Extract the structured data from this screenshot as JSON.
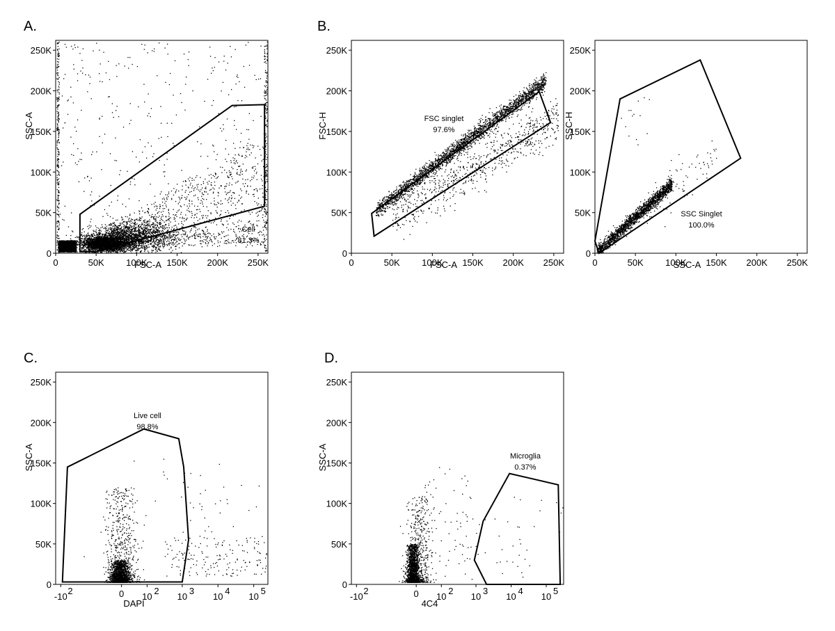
{
  "figure": {
    "background": "#ffffff",
    "ink": "#000000"
  },
  "chart_data": [
    {
      "panel": "A.",
      "type": "scatter",
      "xlabel": "FSC-A",
      "ylabel": "SSC-A",
      "x_scale": "linear",
      "xlim": [
        0,
        262144
      ],
      "ylim": [
        0,
        262144
      ],
      "xticks": [
        {
          "v": 0,
          "label": "0"
        },
        {
          "v": 50000,
          "label": "50K"
        },
        {
          "v": 100000,
          "label": "100K"
        },
        {
          "v": 150000,
          "label": "150K"
        },
        {
          "v": 200000,
          "label": "200K"
        },
        {
          "v": 250000,
          "label": "250K"
        }
      ],
      "yticks": [
        {
          "v": 0,
          "label": "0"
        },
        {
          "v": 50000,
          "label": "50K"
        },
        {
          "v": 100000,
          "label": "100K"
        },
        {
          "v": 150000,
          "label": "150K"
        },
        {
          "v": 200000,
          "label": "200K"
        },
        {
          "v": 250000,
          "label": "250K"
        }
      ],
      "gate": {
        "name": "Cell",
        "percent": "81.3%",
        "vertices": [
          [
            30000,
            48000
          ],
          [
            30000,
            2000
          ],
          [
            50000,
            2000
          ],
          [
            258000,
            58000
          ],
          [
            258000,
            183000
          ],
          [
            218000,
            182000
          ]
        ]
      },
      "clusters": [
        {
          "n": 1800,
          "x": [
            3000,
            25000
          ],
          "y": [
            2000,
            16000
          ],
          "shape": "box"
        },
        {
          "n": 2600,
          "cx": 60000,
          "cy": 12000,
          "sx": 14000,
          "sy": 5000
        },
        {
          "n": 1600,
          "cx": 95000,
          "cy": 20000,
          "sx": 25000,
          "sy": 9000
        },
        {
          "n": 1300,
          "x": [
            40000,
            258000
          ],
          "y": [
            8000,
            150000
          ],
          "shape": "wedge"
        },
        {
          "n": 380,
          "x": [
            2000,
            258000
          ],
          "y": [
            10000,
            262000
          ],
          "shape": "box"
        },
        {
          "n": 260,
          "x": [
            1000,
            4000
          ],
          "y": [
            0,
            262000
          ],
          "shape": "box"
        },
        {
          "n": 220,
          "x": [
            257000,
            261000
          ],
          "y": [
            0,
            262000
          ],
          "shape": "box"
        }
      ]
    },
    {
      "panel": "B.",
      "type": "scatter",
      "xlabel": "FSC-A",
      "ylabel": "FSC-H",
      "x_scale": "linear",
      "xlim": [
        0,
        262144
      ],
      "ylim": [
        0,
        262144
      ],
      "xticks": [
        {
          "v": 0,
          "label": "0"
        },
        {
          "v": 50000,
          "label": "50K"
        },
        {
          "v": 100000,
          "label": "100K"
        },
        {
          "v": 150000,
          "label": "150K"
        },
        {
          "v": 200000,
          "label": "200K"
        },
        {
          "v": 250000,
          "label": "250K"
        }
      ],
      "yticks": [
        {
          "v": 0,
          "label": "0"
        },
        {
          "v": 50000,
          "label": "50K"
        },
        {
          "v": 100000,
          "label": "100K"
        },
        {
          "v": 150000,
          "label": "150K"
        },
        {
          "v": 200000,
          "label": "200K"
        },
        {
          "v": 250000,
          "label": "250K"
        }
      ],
      "gate": {
        "name": "FSC singlet",
        "percent": "97.6%",
        "vertices": [
          [
            25000,
            49000
          ],
          [
            232000,
            199000
          ],
          [
            246000,
            161000
          ],
          [
            28000,
            21000
          ]
        ]
      },
      "clusters": [
        {
          "n": 2600,
          "band": true,
          "x": [
            30000,
            240000
          ],
          "y0": 30000,
          "slope": 0.76,
          "spread": 5000
        },
        {
          "n": 700,
          "band": true,
          "x": [
            50000,
            255000
          ],
          "y0": 15000,
          "slope": 0.6,
          "spread": 14000
        }
      ]
    },
    {
      "panel": "",
      "type": "scatter",
      "xlabel": "SSC-A",
      "ylabel": "SSC-H",
      "x_scale": "linear",
      "xlim": [
        0,
        262144
      ],
      "ylim": [
        0,
        262144
      ],
      "xticks": [
        {
          "v": 0,
          "label": "0"
        },
        {
          "v": 50000,
          "label": "50K"
        },
        {
          "v": 100000,
          "label": "100K"
        },
        {
          "v": 150000,
          "label": "150K"
        },
        {
          "v": 200000,
          "label": "200K"
        },
        {
          "v": 250000,
          "label": "250K"
        }
      ],
      "yticks": [
        {
          "v": 0,
          "label": "0"
        },
        {
          "v": 50000,
          "label": "50K"
        },
        {
          "v": 100000,
          "label": "100K"
        },
        {
          "v": 150000,
          "label": "150K"
        },
        {
          "v": 200000,
          "label": "200K"
        },
        {
          "v": 250000,
          "label": "250K"
        }
      ],
      "gate": {
        "name": "SSC Singlet",
        "percent": "100.0%",
        "vertices": [
          [
            31000,
            190000
          ],
          [
            130000,
            238000
          ],
          [
            180000,
            117000
          ],
          [
            5000,
            0
          ],
          [
            0,
            15000
          ]
        ]
      },
      "clusters": [
        {
          "n": 1900,
          "band": true,
          "x": [
            2000,
            95000
          ],
          "y0": 0,
          "slope": 0.9,
          "spread": 4000
        },
        {
          "n": 90,
          "band": true,
          "x": [
            50000,
            150000
          ],
          "y0": 10000,
          "slope": 0.75,
          "spread": 14000
        },
        {
          "n": 14,
          "x": [
            30000,
            70000
          ],
          "y": [
            130000,
            200000
          ],
          "shape": "box"
        }
      ]
    },
    {
      "panel": "C.",
      "type": "scatter",
      "xlabel": "DAPI",
      "ylabel": "SSC-A",
      "x_scale": "biexponential",
      "xlim": [
        -1000,
        200000
      ],
      "ylim": [
        0,
        262144
      ],
      "xticks": [
        {
          "v": -1000,
          "label": "-10",
          "exp": "2"
        },
        {
          "v": 0,
          "label": "0"
        },
        {
          "v": 100,
          "label": "10",
          "exp": "2"
        },
        {
          "v": 1000,
          "label": "10",
          "exp": "3"
        },
        {
          "v": 10000,
          "label": "10",
          "exp": "4"
        },
        {
          "v": 100000,
          "label": "10",
          "exp": "5"
        }
      ],
      "yticks": [
        {
          "v": 0,
          "label": "0"
        },
        {
          "v": 50000,
          "label": "50K"
        },
        {
          "v": 100000,
          "label": "100K"
        },
        {
          "v": 150000,
          "label": "150K"
        },
        {
          "v": 200000,
          "label": "200K"
        },
        {
          "v": 250000,
          "label": "250K"
        }
      ],
      "gate": {
        "name": "Live cell",
        "percent": "98.8%",
        "vertices": [
          [
            -900,
            3000
          ],
          [
            -650,
            145000
          ],
          [
            80,
            192000
          ],
          [
            800,
            180000
          ],
          [
            1100,
            145000
          ],
          [
            1500,
            55000
          ],
          [
            1000,
            3000
          ]
        ]
      },
      "clusters": [
        {
          "n": 1600,
          "tcx": -0.05,
          "ty": [
            3000,
            30000
          ],
          "tsx": 0.12
        },
        {
          "n": 700,
          "tcx": 0.0,
          "ty": [
            3000,
            120000
          ],
          "tsx": 0.22
        },
        {
          "n": 200,
          "tx": [
            1.2,
            4.5
          ],
          "ty": [
            10000,
            60000
          ]
        },
        {
          "n": 40,
          "tx": [
            0.3,
            4.0
          ],
          "ty": [
            50000,
            160000
          ]
        }
      ]
    },
    {
      "panel": "D.",
      "type": "scatter",
      "xlabel": "4C4",
      "ylabel": "SSC-A",
      "x_scale": "biexponential",
      "xlim": [
        -1000,
        250000
      ],
      "ylim": [
        0,
        262144
      ],
      "xticks": [
        {
          "v": -1000,
          "label": "-10",
          "exp": "2"
        },
        {
          "v": 0,
          "label": "0"
        },
        {
          "v": 100,
          "label": "10",
          "exp": "2"
        },
        {
          "v": 1000,
          "label": "10",
          "exp": "3"
        },
        {
          "v": 10000,
          "label": "10",
          "exp": "4"
        },
        {
          "v": 100000,
          "label": "10",
          "exp": "5"
        }
      ],
      "yticks": [
        {
          "v": 0,
          "label": "0"
        },
        {
          "v": 50000,
          "label": "50K"
        },
        {
          "v": 100000,
          "label": "100K"
        },
        {
          "v": 150000,
          "label": "150K"
        },
        {
          "v": 200000,
          "label": "200K"
        },
        {
          "v": 250000,
          "label": "250K"
        }
      ],
      "gate": {
        "name": "Microglia",
        "percent": "0.37%",
        "vertices": [
          [
            1600,
            78000
          ],
          [
            9000,
            137000
          ],
          [
            220000,
            123000
          ],
          [
            250000,
            0
          ],
          [
            2000,
            0
          ],
          [
            900,
            30000
          ]
        ]
      },
      "clusters": [
        {
          "n": 1700,
          "tcx": -0.1,
          "ty": [
            3000,
            50000
          ],
          "tsx": 0.08
        },
        {
          "n": 500,
          "tcx": 0.05,
          "ty": [
            3000,
            110000
          ],
          "tsx": 0.18
        },
        {
          "n": 70,
          "tx": [
            0.2,
            1.6
          ],
          "ty": [
            10000,
            145000
          ]
        },
        {
          "n": 45,
          "tx": [
            1.4,
            4.8
          ],
          "ty": [
            5000,
            110000
          ]
        }
      ]
    }
  ]
}
